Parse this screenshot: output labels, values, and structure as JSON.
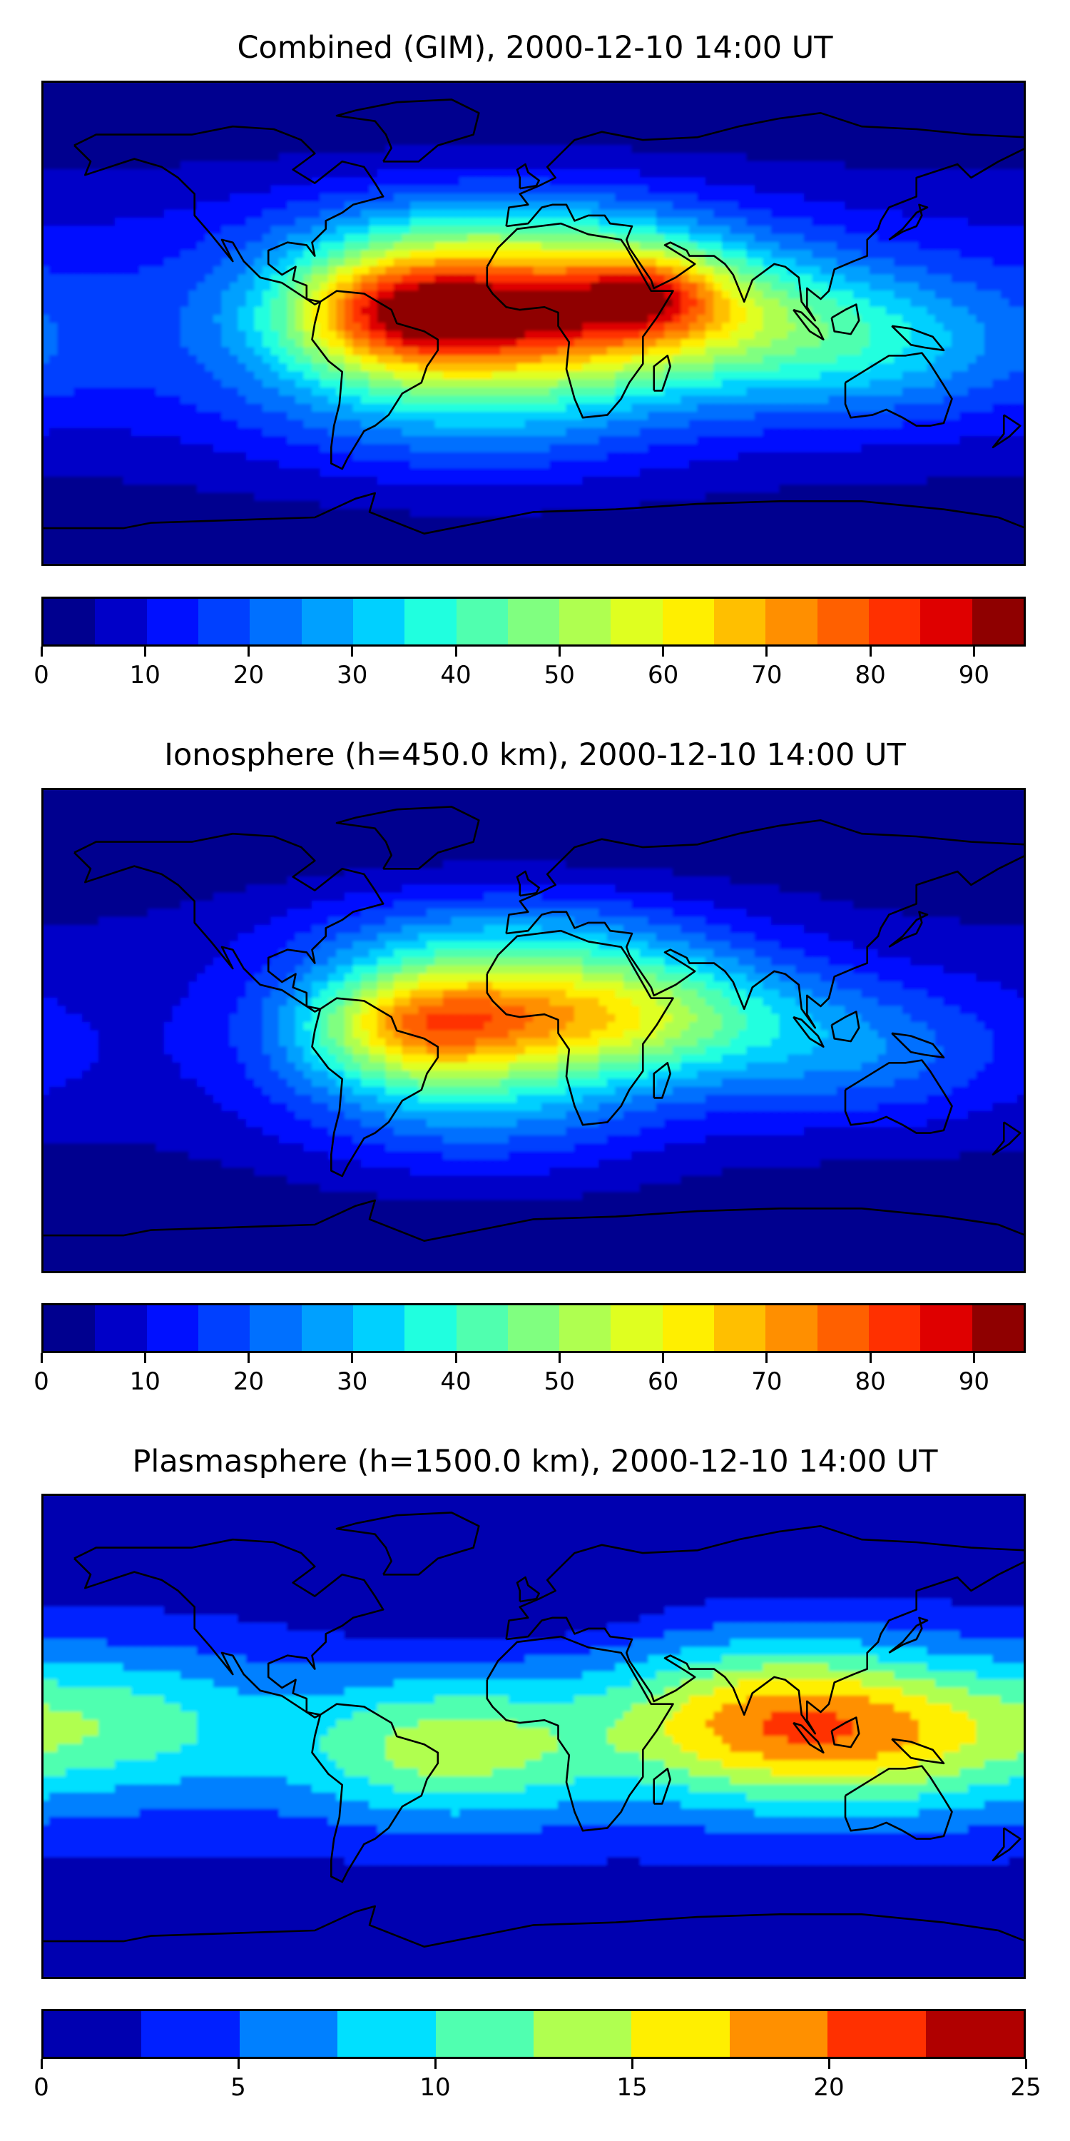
{
  "panels": [
    {
      "title": "Combined (GIM), 2000-12-10 14:00 UT",
      "colorbar": {
        "min": 0,
        "max": 95,
        "step": 5,
        "ticks": [
          "0",
          "10",
          "20",
          "30",
          "40",
          "50",
          "60",
          "70",
          "80",
          "90"
        ],
        "tick_values": [
          0,
          10,
          20,
          30,
          40,
          50,
          60,
          70,
          80,
          90
        ],
        "colors": [
          "#00008f",
          "#0000c8",
          "#0010ff",
          "#0040ff",
          "#0070ff",
          "#00a0ff",
          "#00d0ff",
          "#20ffdf",
          "#50ffaf",
          "#80ff80",
          "#afff50",
          "#dfff20",
          "#ffef00",
          "#ffbf00",
          "#ff8f00",
          "#ff6000",
          "#ff3000",
          "#df0000",
          "#8f0000"
        ]
      },
      "field": {
        "lon_range": [
          -180,
          180
        ],
        "lat_range": [
          -90,
          90
        ],
        "base": 15,
        "lat_decay": 0.00035,
        "blobs": [
          {
            "lon": 15,
            "lat": 5,
            "amp": 62,
            "sx": 55,
            "sy": 17
          },
          {
            "lon": -50,
            "lat": 5,
            "amp": 42,
            "sx": 30,
            "sy": 16
          },
          {
            "lon": 42,
            "lat": 12,
            "amp": 22,
            "sx": 18,
            "sy": 10
          },
          {
            "lon": -20,
            "lat": -25,
            "amp": 22,
            "sx": 55,
            "sy": 22
          },
          {
            "lon": 120,
            "lat": -10,
            "amp": 18,
            "sx": 40,
            "sy": 18
          },
          {
            "lon": -10,
            "lat": 35,
            "amp": 18,
            "sx": 55,
            "sy": 14
          }
        ]
      }
    },
    {
      "title": "Ionosphere  (h=450.0 km), 2000-12-10 14:00 UT",
      "colorbar": {
        "min": 0,
        "max": 95,
        "step": 5,
        "ticks": [
          "0",
          "10",
          "20",
          "30",
          "40",
          "50",
          "60",
          "70",
          "80",
          "90"
        ],
        "tick_values": [
          0,
          10,
          20,
          30,
          40,
          50,
          60,
          70,
          80,
          90
        ],
        "colors": [
          "#00008f",
          "#0000c8",
          "#0010ff",
          "#0040ff",
          "#0070ff",
          "#00a0ff",
          "#00d0ff",
          "#20ffdf",
          "#50ffaf",
          "#80ff80",
          "#afff50",
          "#dfff20",
          "#ffef00",
          "#ffbf00",
          "#ff8f00",
          "#ff6000",
          "#ff3000",
          "#df0000",
          "#8f0000"
        ]
      },
      "field": {
        "lon_range": [
          -180,
          180
        ],
        "lat_range": [
          -90,
          90
        ],
        "base": 8,
        "lat_decay": 0.00035,
        "blobs": [
          {
            "lon": 15,
            "lat": 6,
            "amp": 52,
            "sx": 52,
            "sy": 16
          },
          {
            "lon": -45,
            "lat": 2,
            "amp": 35,
            "sx": 28,
            "sy": 15
          },
          {
            "lon": -20,
            "lat": -25,
            "amp": 20,
            "sx": 50,
            "sy": 20
          },
          {
            "lon": 120,
            "lat": -10,
            "amp": 14,
            "sx": 40,
            "sy": 18
          },
          {
            "lon": -10,
            "lat": 35,
            "amp": 18,
            "sx": 55,
            "sy": 14
          }
        ]
      }
    },
    {
      "title": "Plasmasphere (h=1500.0 km), 2000-12-10 14:00 UT",
      "colorbar": {
        "min": 0,
        "max": 25,
        "step": 2.5,
        "ticks": [
          "0",
          "5",
          "10",
          "15",
          "20",
          "25"
        ],
        "tick_values": [
          0,
          5,
          10,
          15,
          20,
          25
        ],
        "colors": [
          "#0000b0",
          "#0020ff",
          "#0080ff",
          "#00e0ff",
          "#50ffb0",
          "#b0ff50",
          "#ffef00",
          "#ff9000",
          "#ff3000",
          "#b00000"
        ]
      },
      "field": {
        "lon_range": [
          -180,
          180
        ],
        "lat_range": [
          -90,
          90
        ],
        "base": 5,
        "lat_decay": 0.0004,
        "blobs": [
          {
            "lon": 85,
            "lat": 5,
            "amp": 13,
            "sx": 40,
            "sy": 20
          },
          {
            "lon": -30,
            "lat": -5,
            "amp": 9,
            "sx": 40,
            "sy": 18
          },
          {
            "lon": 140,
            "lat": 0,
            "amp": 7,
            "sx": 35,
            "sy": 20
          },
          {
            "lon": -150,
            "lat": 5,
            "amp": 6,
            "sx": 35,
            "sy": 18
          },
          {
            "lon": -20,
            "lat": 55,
            "amp": -6,
            "sx": 35,
            "sy": 12
          }
        ]
      }
    }
  ]
}
